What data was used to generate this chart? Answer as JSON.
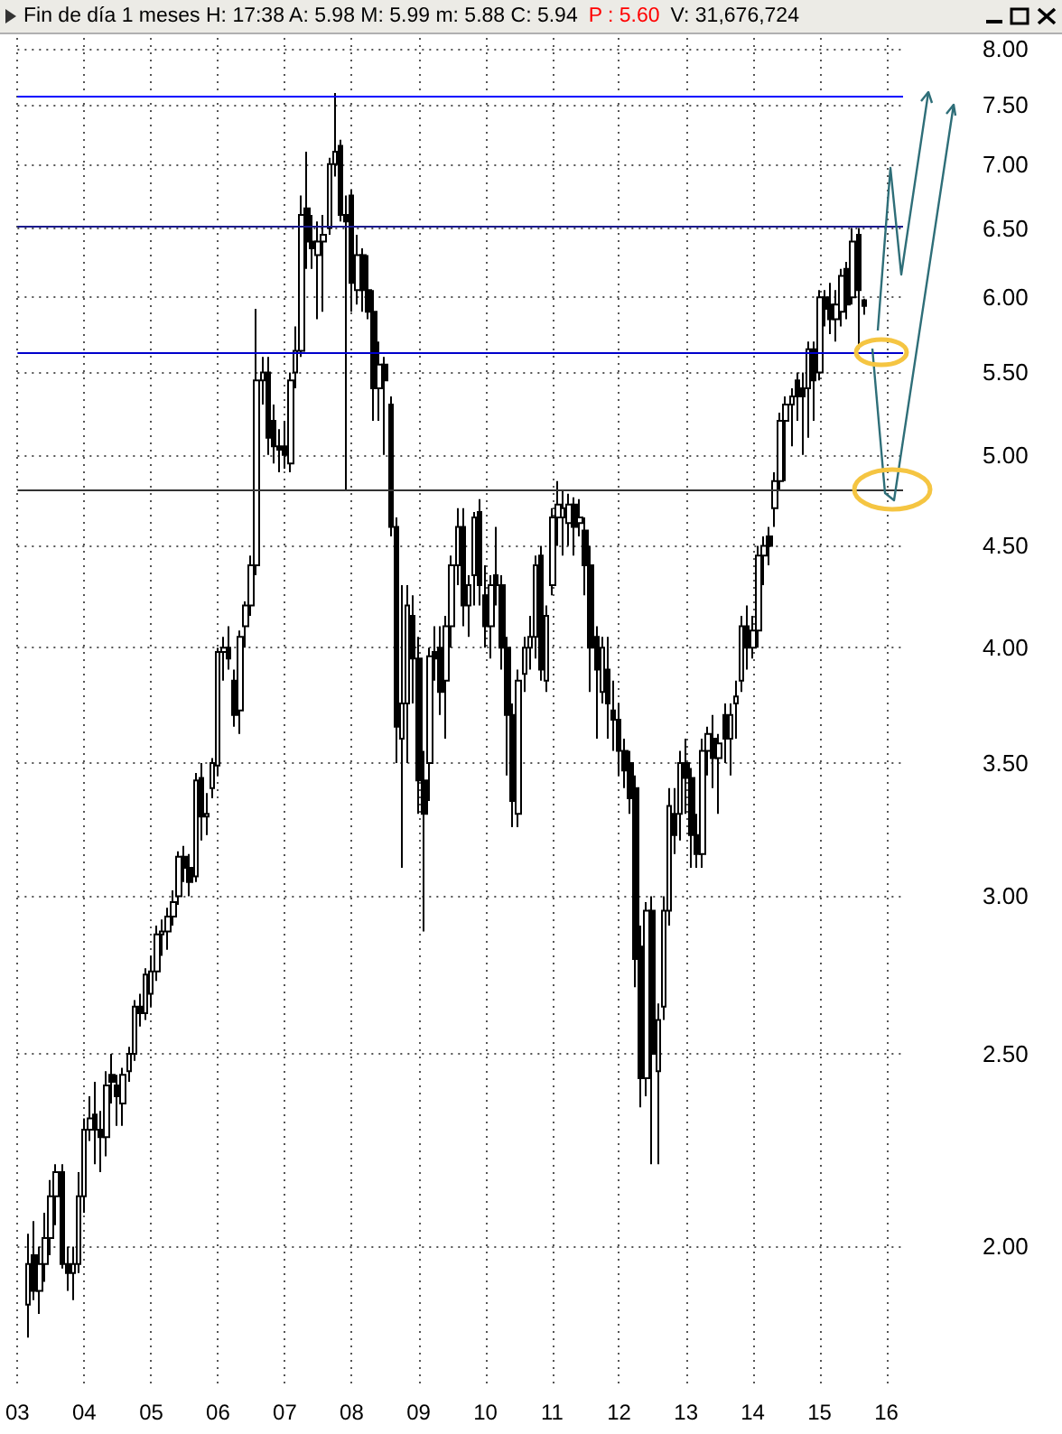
{
  "chart_data": {
    "type": "candlestick",
    "title": "Fin de día 1 meses  H: 17:38  A: 5.98  M: 5.99  m: 5.88  C: 5.94",
    "subtitle": "P : 5.60",
    "annotations": [
      "V: 31,676,724"
    ],
    "log": "y",
    "grid": true,
    "xlim": [
      "2003-01",
      "2016-04"
    ],
    "xticks": [
      {
        "value": "2003-01",
        "label": "03"
      },
      {
        "value": "2004-01",
        "label": "04"
      },
      {
        "value": "2005-01",
        "label": "05"
      },
      {
        "value": "2006-01",
        "label": "06"
      },
      {
        "value": "2007-01",
        "label": "07"
      },
      {
        "value": "2008-01",
        "label": "08"
      },
      {
        "value": "2009-01",
        "label": "09"
      },
      {
        "value": "2010-01",
        "label": "10"
      },
      {
        "value": "2011-01",
        "label": "11"
      },
      {
        "value": "2012-01",
        "label": "12"
      },
      {
        "value": "2013-01",
        "label": "13"
      },
      {
        "value": "2014-01",
        "label": "14"
      },
      {
        "value": "2015-01",
        "label": "15"
      },
      {
        "value": "2016-01",
        "label": "16"
      }
    ],
    "ylim": [
      1.7,
      8.1
    ],
    "yticks": [
      {
        "value": 2,
        "label": "2.00"
      },
      {
        "value": 2.5,
        "label": "2.50"
      },
      {
        "value": 3,
        "label": "3.00"
      },
      {
        "value": 3.5,
        "label": "3.50"
      },
      {
        "value": 4,
        "label": "4.00"
      },
      {
        "value": 4.5,
        "label": "4.50"
      },
      {
        "value": 5,
        "label": "5.00"
      },
      {
        "value": 5.5,
        "label": "5.50"
      },
      {
        "value": 6,
        "label": "6.00"
      },
      {
        "value": 6.5,
        "label": "6.50"
      },
      {
        "value": 7,
        "label": "7.00"
      },
      {
        "value": 7.5,
        "label": "7.50"
      },
      {
        "value": 8,
        "label": "8.00"
      }
    ],
    "ref_lines": [
      {
        "axis": "y",
        "value": 7.57,
        "color": "#0000ff"
      },
      {
        "axis": "y",
        "value": 6.52,
        "color": "#1a1a8c"
      },
      {
        "axis": "y",
        "value": 5.63,
        "color": "#0000cc"
      },
      {
        "axis": "y",
        "value": 4.8,
        "color": "#333333"
      }
    ],
    "x": [
      "2003-03",
      "2003-04",
      "2003-05",
      "2003-06",
      "2003-07",
      "2003-08",
      "2003-09",
      "2003-10",
      "2003-11",
      "2003-12",
      "2004-01",
      "2004-02",
      "2004-03",
      "2004-04",
      "2004-05",
      "2004-06",
      "2004-07",
      "2004-08",
      "2004-09",
      "2004-10",
      "2004-11",
      "2004-12",
      "2005-01",
      "2005-02",
      "2005-03",
      "2005-04",
      "2005-05",
      "2005-06",
      "2005-07",
      "2005-08",
      "2005-09",
      "2005-10",
      "2005-11",
      "2005-12",
      "2006-01",
      "2006-02",
      "2006-03",
      "2006-04",
      "2006-05",
      "2006-06",
      "2006-07",
      "2006-08",
      "2006-09",
      "2006-10",
      "2006-11",
      "2006-12",
      "2007-01",
      "2007-02",
      "2007-03",
      "2007-04",
      "2007-05",
      "2007-06",
      "2007-07",
      "2007-08",
      "2007-09",
      "2007-10",
      "2007-11",
      "2007-12",
      "2008-01",
      "2008-02",
      "2008-03",
      "2008-04",
      "2008-05",
      "2008-06",
      "2008-07",
      "2008-08",
      "2008-09",
      "2008-10",
      "2008-11",
      "2008-12",
      "2009-01",
      "2009-02",
      "2009-03",
      "2009-04",
      "2009-05",
      "2009-06",
      "2009-07",
      "2009-08",
      "2009-09",
      "2009-10",
      "2009-11",
      "2009-12",
      "2010-01",
      "2010-02",
      "2010-03",
      "2010-04",
      "2010-05",
      "2010-06",
      "2010-07",
      "2010-08",
      "2010-09",
      "2010-10",
      "2010-11",
      "2010-12",
      "2011-01",
      "2011-02",
      "2011-03",
      "2011-04",
      "2011-05",
      "2011-06",
      "2011-07",
      "2011-08",
      "2011-09",
      "2011-10",
      "2011-11",
      "2011-12",
      "2012-01",
      "2012-02",
      "2012-03",
      "2012-04",
      "2012-05",
      "2012-06",
      "2012-07",
      "2012-08",
      "2012-09",
      "2012-10",
      "2012-11",
      "2012-12",
      "2013-01",
      "2013-02",
      "2013-03",
      "2013-04",
      "2013-05",
      "2013-06",
      "2013-07",
      "2013-08",
      "2013-09",
      "2013-10",
      "2013-11",
      "2013-12",
      "2014-01",
      "2014-02",
      "2014-03",
      "2014-04",
      "2014-05",
      "2014-06",
      "2014-07",
      "2014-08",
      "2014-09",
      "2014-10",
      "2014-11",
      "2014-12",
      "2015-01",
      "2015-02",
      "2015-03",
      "2015-04",
      "2015-05",
      "2015-06",
      "2015-07",
      "2015-08",
      "2015-09"
    ],
    "ohlc": [
      [
        1.87,
        2.03,
        1.8,
        1.96
      ],
      [
        1.98,
        2.06,
        1.88,
        1.9
      ],
      [
        1.9,
        2.0,
        1.85,
        1.96
      ],
      [
        1.96,
        2.08,
        1.92,
        2.02
      ],
      [
        2.02,
        2.16,
        1.98,
        2.12
      ],
      [
        2.12,
        2.2,
        2.05,
        2.18
      ],
      [
        2.18,
        2.2,
        1.95,
        1.96
      ],
      [
        1.96,
        2.0,
        1.9,
        1.94
      ],
      [
        1.94,
        2.0,
        1.88,
        1.96
      ],
      [
        1.96,
        2.18,
        1.94,
        2.12
      ],
      [
        2.12,
        2.32,
        2.08,
        2.29
      ],
      [
        2.29,
        2.38,
        2.26,
        2.32
      ],
      [
        2.33,
        2.42,
        2.2,
        2.29
      ],
      [
        2.29,
        2.34,
        2.18,
        2.27
      ],
      [
        2.27,
        2.45,
        2.22,
        2.41
      ],
      [
        2.44,
        2.5,
        2.36,
        2.42
      ],
      [
        2.41,
        2.44,
        2.3,
        2.38
      ],
      [
        2.36,
        2.46,
        2.3,
        2.44
      ],
      [
        2.45,
        2.52,
        2.42,
        2.5
      ],
      [
        2.5,
        2.66,
        2.48,
        2.64
      ],
      [
        2.64,
        2.68,
        2.58,
        2.62
      ],
      [
        2.62,
        2.76,
        2.6,
        2.74
      ],
      [
        2.68,
        2.8,
        2.64,
        2.75
      ],
      [
        2.75,
        2.9,
        2.72,
        2.87
      ],
      [
        2.87,
        2.92,
        2.8,
        2.88
      ],
      [
        2.88,
        2.96,
        2.82,
        2.93
      ],
      [
        2.93,
        3.02,
        2.9,
        2.98
      ],
      [
        3.0,
        3.16,
        2.97,
        3.14
      ],
      [
        3.14,
        3.18,
        3.05,
        3.1
      ],
      [
        3.1,
        3.15,
        3.0,
        3.05
      ],
      [
        3.07,
        3.46,
        3.05,
        3.43
      ],
      [
        3.44,
        3.5,
        3.2,
        3.29
      ],
      [
        3.29,
        3.38,
        3.22,
        3.3
      ],
      [
        3.4,
        3.52,
        3.36,
        3.5
      ],
      [
        3.49,
        4.0,
        3.45,
        3.98
      ],
      [
        3.98,
        4.05,
        3.85,
        4.0
      ],
      [
        4.0,
        4.1,
        3.9,
        3.95
      ],
      [
        3.85,
        3.9,
        3.65,
        3.7
      ],
      [
        3.72,
        4.08,
        3.62,
        4.05
      ],
      [
        4.1,
        4.22,
        4.0,
        4.2
      ],
      [
        4.2,
        4.45,
        4.15,
        4.4
      ],
      [
        4.4,
        5.92,
        4.35,
        5.45
      ],
      [
        5.45,
        5.6,
        5.3,
        5.5
      ],
      [
        5.5,
        5.6,
        5.0,
        5.1
      ],
      [
        5.2,
        5.3,
        4.95,
        5.05
      ],
      [
        5.05,
        5.15,
        4.9,
        5.03
      ],
      [
        5.05,
        5.2,
        4.92,
        5.0
      ],
      [
        4.95,
        5.5,
        4.9,
        5.45
      ],
      [
        5.5,
        5.8,
        5.4,
        5.64
      ],
      [
        5.64,
        6.75,
        5.6,
        6.6
      ],
      [
        6.65,
        7.1,
        6.2,
        6.4
      ],
      [
        6.4,
        6.6,
        6.2,
        6.35
      ],
      [
        6.3,
        6.55,
        5.85,
        6.4
      ],
      [
        6.4,
        6.6,
        5.9,
        6.45
      ],
      [
        6.5,
        7.05,
        6.45,
        7.0
      ],
      [
        7.0,
        7.6,
        6.9,
        7.1
      ],
      [
        7.15,
        7.2,
        6.55,
        6.6
      ],
      [
        6.6,
        6.75,
        4.8,
        6.55
      ],
      [
        6.75,
        6.8,
        5.9,
        6.1
      ],
      [
        6.05,
        6.45,
        5.95,
        6.3
      ],
      [
        6.3,
        6.35,
        5.9,
        6.05
      ],
      [
        6.05,
        6.3,
        5.85,
        5.9
      ],
      [
        5.9,
        6.05,
        5.2,
        5.4
      ],
      [
        5.4,
        5.7,
        5.2,
        5.55
      ],
      [
        5.55,
        5.6,
        5.0,
        5.45
      ],
      [
        5.3,
        5.35,
        4.55,
        4.6
      ],
      [
        4.6,
        4.65,
        3.5,
        3.65
      ],
      [
        3.6,
        4.3,
        3.1,
        3.75
      ],
      [
        3.75,
        4.3,
        3.5,
        4.2
      ],
      [
        4.15,
        4.25,
        3.75,
        3.95
      ],
      [
        3.95,
        4.05,
        3.3,
        3.43
      ],
      [
        3.43,
        3.55,
        2.88,
        3.3
      ],
      [
        3.5,
        4.0,
        3.35,
        3.96
      ],
      [
        3.98,
        4.1,
        3.85,
        3.95
      ],
      [
        4.0,
        4.1,
        3.7,
        3.8
      ],
      [
        3.85,
        4.15,
        3.6,
        4.1
      ],
      [
        4.1,
        4.45,
        4.0,
        4.4
      ],
      [
        4.4,
        4.7,
        4.3,
        4.6
      ],
      [
        4.6,
        4.7,
        4.1,
        4.2
      ],
      [
        4.2,
        4.35,
        4.05,
        4.3
      ],
      [
        4.35,
        4.68,
        4.2,
        4.65
      ],
      [
        4.68,
        4.75,
        4.2,
        4.3
      ],
      [
        4.25,
        4.4,
        4.0,
        4.1
      ],
      [
        4.1,
        4.35,
        3.95,
        4.3
      ],
      [
        4.35,
        4.6,
        4.2,
        4.3
      ],
      [
        4.3,
        4.35,
        3.9,
        4.0
      ],
      [
        4.0,
        4.05,
        3.45,
        3.7
      ],
      [
        3.7,
        3.75,
        3.25,
        3.35
      ],
      [
        3.3,
        3.9,
        3.25,
        3.85
      ],
      [
        3.88,
        4.05,
        3.8,
        4.0
      ],
      [
        4.0,
        4.15,
        3.9,
        4.05
      ],
      [
        4.05,
        4.45,
        3.95,
        4.4
      ],
      [
        4.45,
        4.5,
        3.85,
        3.9
      ],
      [
        3.85,
        4.2,
        3.8,
        4.15
      ],
      [
        4.3,
        4.7,
        4.25,
        4.65
      ],
      [
        4.65,
        4.85,
        4.5,
        4.72
      ],
      [
        4.65,
        4.8,
        4.45,
        4.7
      ],
      [
        4.62,
        4.78,
        4.5,
        4.72
      ],
      [
        4.72,
        4.76,
        4.45,
        4.6
      ],
      [
        4.62,
        4.75,
        4.55,
        4.65
      ],
      [
        4.58,
        4.65,
        4.25,
        4.4
      ],
      [
        4.4,
        4.5,
        3.8,
        4.0
      ],
      [
        4.05,
        4.1,
        3.6,
        3.9
      ],
      [
        3.8,
        4.05,
        3.75,
        4.0
      ],
      [
        3.9,
        4.05,
        3.6,
        3.75
      ],
      [
        3.72,
        3.85,
        3.55,
        3.68
      ],
      [
        3.68,
        3.75,
        3.45,
        3.55
      ],
      [
        3.55,
        3.6,
        3.4,
        3.47
      ],
      [
        3.5,
        3.55,
        3.3,
        3.36
      ],
      [
        3.4,
        3.45,
        2.7,
        2.79
      ],
      [
        2.83,
        2.9,
        2.35,
        2.43
      ],
      [
        2.43,
        2.98,
        2.38,
        2.95
      ],
      [
        2.95,
        3.0,
        2.2,
        2.5
      ],
      [
        2.45,
        2.65,
        2.2,
        2.6
      ],
      [
        2.64,
        3.0,
        2.6,
        2.95
      ],
      [
        2.95,
        3.4,
        2.9,
        3.33
      ],
      [
        3.3,
        3.4,
        3.15,
        3.22
      ],
      [
        3.3,
        3.55,
        3.2,
        3.5
      ],
      [
        3.5,
        3.6,
        3.3,
        3.44
      ],
      [
        3.44,
        3.48,
        3.1,
        3.22
      ],
      [
        3.22,
        3.3,
        3.1,
        3.15
      ],
      [
        3.15,
        3.6,
        3.1,
        3.55
      ],
      [
        3.55,
        3.65,
        3.45,
        3.62
      ],
      [
        3.6,
        3.7,
        3.4,
        3.52
      ],
      [
        3.52,
        3.62,
        3.3,
        3.58
      ],
      [
        3.7,
        3.75,
        3.5,
        3.6
      ],
      [
        3.6,
        3.75,
        3.45,
        3.7
      ],
      [
        3.75,
        3.85,
        3.6,
        3.78
      ],
      [
        3.85,
        4.15,
        3.8,
        4.1
      ],
      [
        4.1,
        4.2,
        3.9,
        4.0
      ],
      [
        4.0,
        4.15,
        3.95,
        4.08
      ],
      [
        4.08,
        4.5,
        4.0,
        4.45
      ],
      [
        4.45,
        4.55,
        4.3,
        4.5
      ],
      [
        4.55,
        4.6,
        4.4,
        4.5
      ],
      [
        4.7,
        4.9,
        4.6,
        4.85
      ],
      [
        4.85,
        5.25,
        4.8,
        5.2
      ],
      [
        5.2,
        5.35,
        4.85,
        5.3
      ],
      [
        5.3,
        5.4,
        5.05,
        5.35
      ],
      [
        5.45,
        5.5,
        5.2,
        5.35
      ],
      [
        5.4,
        5.5,
        5.0,
        5.35
      ],
      [
        5.4,
        5.7,
        5.1,
        5.65
      ],
      [
        5.65,
        5.7,
        5.2,
        5.45
      ],
      [
        5.5,
        6.05,
        5.45,
        6.0
      ],
      [
        6.0,
        6.05,
        5.8,
        5.92
      ],
      [
        5.95,
        6.1,
        5.75,
        5.85
      ],
      [
        5.85,
        6.05,
        5.7,
        5.95
      ],
      [
        5.9,
        6.2,
        5.8,
        6.15
      ],
      [
        6.2,
        6.25,
        5.85,
        5.95
      ],
      [
        6.0,
        6.5,
        5.95,
        6.4
      ],
      [
        6.45,
        6.5,
        5.65,
        6.05
      ],
      [
        5.98,
        5.99,
        5.88,
        5.94
      ]
    ]
  }
}
